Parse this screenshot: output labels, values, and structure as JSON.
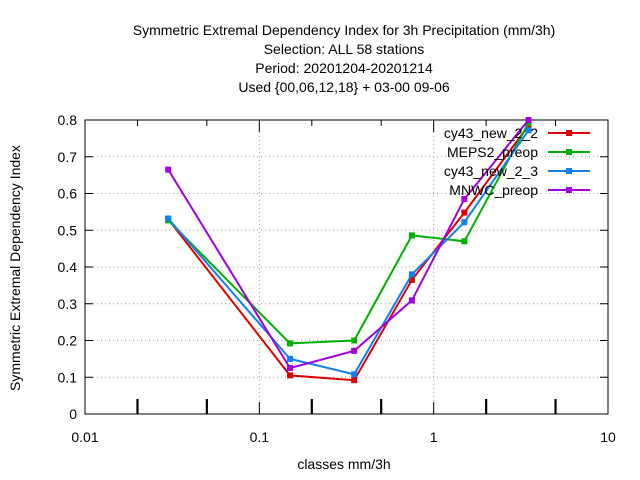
{
  "chart_data": {
    "type": "line",
    "title_lines": [
      "Symmetric Extremal Dependency Index  for 3h Precipitation (mm/3h)",
      "Selection: ALL      58 stations",
      "Period: 20201204-20201214",
      "Used {00,06,12,18} + 03-00 09-06"
    ],
    "xlabel": "classes mm/3h",
    "ylabel": "Symmetric Extremal Dependency Index",
    "x_scale": "log",
    "xlim": [
      0.01,
      10
    ],
    "ylim": [
      0,
      0.8
    ],
    "x_ticks": [
      {
        "value": 0.01,
        "label": "0.01"
      },
      {
        "value": 0.1,
        "label": "0.1"
      },
      {
        "value": 1,
        "label": "1"
      },
      {
        "value": 10,
        "label": "10"
      }
    ],
    "y_ticks": [
      {
        "value": 0,
        "label": "0"
      },
      {
        "value": 0.1,
        "label": "0.1"
      },
      {
        "value": 0.2,
        "label": "0.2"
      },
      {
        "value": 0.3,
        "label": "0.3"
      },
      {
        "value": 0.4,
        "label": "0.4"
      },
      {
        "value": 0.5,
        "label": "0.5"
      },
      {
        "value": 0.6,
        "label": "0.6"
      },
      {
        "value": 0.7,
        "label": "0.7"
      },
      {
        "value": 0.8,
        "label": "0.8"
      }
    ],
    "grid": true,
    "legend_position": "top-right",
    "series": [
      {
        "name": "cy43_new_2_2",
        "color": "#e00000",
        "x": [
          0.03,
          0.15,
          0.35,
          0.75,
          1.5,
          3.5
        ],
        "values": [
          0.53,
          0.105,
          0.092,
          0.365,
          0.548,
          0.785
        ]
      },
      {
        "name": "MEPS2_preop",
        "color": "#00b000",
        "x": [
          0.03,
          0.15,
          0.35,
          0.75,
          1.5,
          3.5
        ],
        "values": [
          0.527,
          0.192,
          0.2,
          0.486,
          0.47,
          0.792
        ]
      },
      {
        "name": "cy43_new_2_3",
        "color": "#1080f0",
        "x": [
          0.03,
          0.15,
          0.35,
          0.75,
          1.5,
          3.5
        ],
        "values": [
          0.532,
          0.15,
          0.108,
          0.38,
          0.522,
          0.772
        ]
      },
      {
        "name": "MNWC_preop",
        "color": "#a000e0",
        "x": [
          0.03,
          0.15,
          0.35,
          0.75,
          1.5,
          3.5
        ],
        "values": [
          0.665,
          0.125,
          0.172,
          0.309,
          0.585,
          0.8
        ]
      }
    ]
  }
}
